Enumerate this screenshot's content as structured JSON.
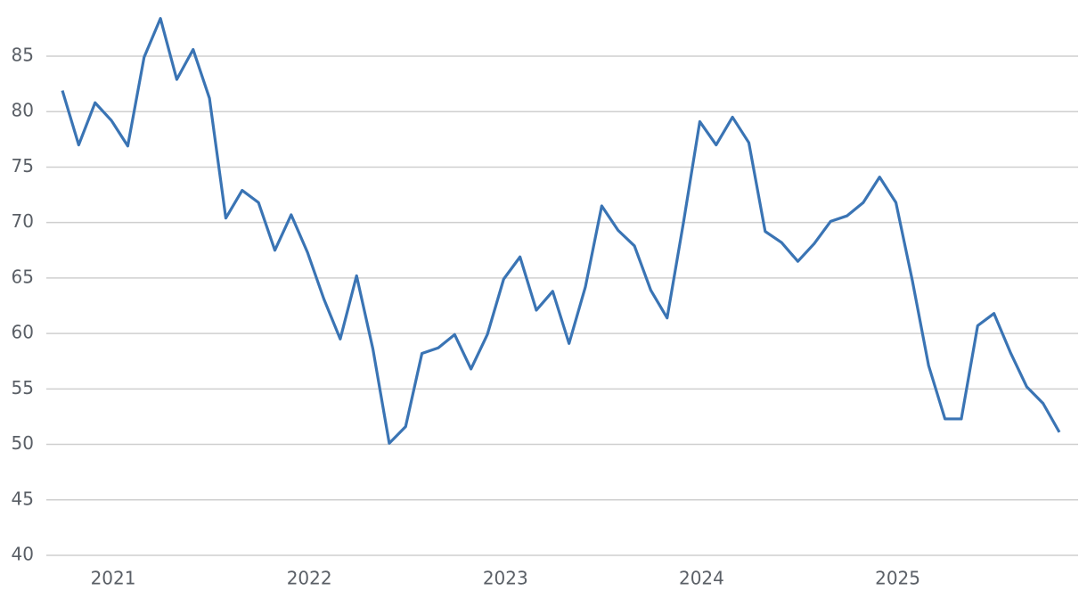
{
  "chart_data": {
    "type": "line",
    "categories": [
      null,
      null,
      null,
      "2021",
      null,
      null,
      null,
      null,
      null,
      null,
      null,
      null,
      null,
      null,
      null,
      "2022",
      null,
      null,
      null,
      null,
      null,
      null,
      null,
      null,
      null,
      null,
      null,
      "2023",
      null,
      null,
      null,
      null,
      null,
      null,
      null,
      null,
      null,
      null,
      null,
      "2024",
      null,
      null,
      null,
      null,
      null,
      null,
      null,
      null,
      null,
      null,
      null,
      "2025",
      null,
      null,
      null,
      null,
      null,
      null,
      null,
      null,
      null,
      null
    ],
    "series": [
      {
        "color": "#3a74b4",
        "values": [
          81.9,
          77.0,
          80.8,
          79.2,
          76.9,
          84.9,
          88.4,
          82.9,
          85.6,
          81.2,
          70.4,
          72.9,
          71.8,
          67.5,
          70.7,
          67.3,
          63.1,
          59.5,
          65.2,
          58.6,
          50.1,
          51.6,
          58.2,
          58.7,
          59.9,
          56.8,
          59.9,
          64.9,
          66.9,
          62.1,
          63.8,
          59.1,
          64.2,
          71.5,
          69.3,
          67.9,
          63.9,
          61.4,
          70.0,
          79.1,
          77.0,
          79.5,
          77.2,
          69.2,
          68.2,
          66.5,
          68.1,
          70.1,
          70.6,
          71.8,
          74.1,
          71.8,
          64.8,
          57.1,
          52.3,
          52.3,
          60.7,
          61.8,
          58.3,
          55.2,
          53.7,
          51.1
        ]
      }
    ],
    "ylim": [
      40,
      89.5
    ],
    "yticks": [
      40,
      45,
      50,
      55,
      60,
      65,
      70,
      75,
      80,
      85
    ],
    "grid": true
  }
}
